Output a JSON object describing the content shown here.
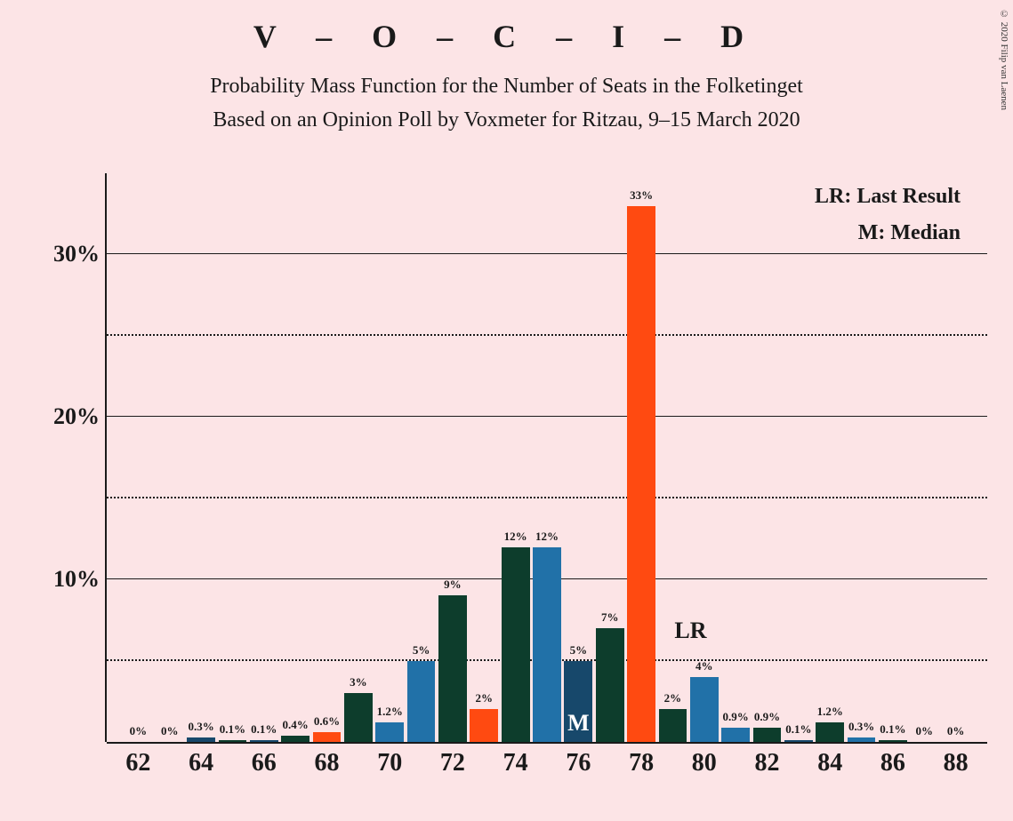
{
  "title": "V – O – C – I – D",
  "subtitle_line1": "Probability Mass Function for the Number of Seats in the Folketinget",
  "subtitle_line2": "Based on an Opinion Poll by Voxmeter for Ritzau, 9–15 March 2020",
  "copyright": "© 2020 Filip van Laenen",
  "legend_lr": "LR: Last Result",
  "legend_m": "M: Median",
  "marker_m": "M",
  "marker_lr": "LR",
  "chart": {
    "type": "bar",
    "background_color": "#fce4e6",
    "text_color": "#1a1a1a",
    "grid_solid_color": "#1a1a1a",
    "grid_dotted_color": "#1a1a1a",
    "ylim_max": 35,
    "y_ticks_major": [
      10,
      20,
      30
    ],
    "y_ticks_minor": [
      5,
      15,
      25
    ],
    "y_tick_labels": [
      "10%",
      "20%",
      "30%"
    ],
    "x_ticks": [
      62,
      64,
      66,
      68,
      70,
      72,
      74,
      76,
      78,
      80,
      82,
      84,
      86,
      88
    ],
    "x_min": 61,
    "x_max": 89,
    "bar_width": 0.9,
    "median_x": 76,
    "lr_x": 79,
    "bars": [
      {
        "x": 62,
        "value": 0,
        "label": "0%",
        "color": "#17486b"
      },
      {
        "x": 63,
        "value": 0,
        "label": "0%",
        "color": "#0d3d2c"
      },
      {
        "x": 64,
        "value": 0.3,
        "label": "0.3%",
        "color": "#17486b"
      },
      {
        "x": 65,
        "value": 0.1,
        "label": "0.1%",
        "color": "#0d3d2c"
      },
      {
        "x": 66,
        "value": 0.1,
        "label": "0.1%",
        "color": "#17486b"
      },
      {
        "x": 67,
        "value": 0.4,
        "label": "0.4%",
        "color": "#0d3d2c"
      },
      {
        "x": 68,
        "value": 0.6,
        "label": "0.6%",
        "color": "#ff4a11"
      },
      {
        "x": 69,
        "value": 3,
        "label": "3%",
        "color": "#0d3d2c"
      },
      {
        "x": 70,
        "value": 1.2,
        "label": "1.2%",
        "color": "#2171a8"
      },
      {
        "x": 71,
        "value": 5,
        "label": "5%",
        "color": "#2171a8"
      },
      {
        "x": 72,
        "value": 9,
        "label": "9%",
        "color": "#0d3d2c"
      },
      {
        "x": 73,
        "value": 2,
        "label": "2%",
        "color": "#ff4a11"
      },
      {
        "x": 74,
        "value": 12,
        "label": "12%",
        "color": "#0d3d2c"
      },
      {
        "x": 75,
        "value": 12,
        "label": "12%",
        "color": "#2171a8"
      },
      {
        "x": 76,
        "value": 5,
        "label": "5%",
        "color": "#17486b"
      },
      {
        "x": 77,
        "value": 7,
        "label": "7%",
        "color": "#0d3d2c"
      },
      {
        "x": 78,
        "value": 33,
        "label": "33%",
        "color": "#ff4a11"
      },
      {
        "x": 79,
        "value": 2,
        "label": "2%",
        "color": "#0d3d2c"
      },
      {
        "x": 80,
        "value": 4,
        "label": "4%",
        "color": "#2171a8"
      },
      {
        "x": 81,
        "value": 0.9,
        "label": "0.9%",
        "color": "#2171a8"
      },
      {
        "x": 82,
        "value": 0.9,
        "label": "0.9%",
        "color": "#0d3d2c"
      },
      {
        "x": 83,
        "value": 0.1,
        "label": "0.1%",
        "color": "#17486b"
      },
      {
        "x": 84,
        "value": 1.2,
        "label": "1.2%",
        "color": "#0d3d2c"
      },
      {
        "x": 85,
        "value": 0.3,
        "label": "0.3%",
        "color": "#2171a8"
      },
      {
        "x": 86,
        "value": 0.1,
        "label": "0.1%",
        "color": "#0d3d2c"
      },
      {
        "x": 87,
        "value": 0,
        "label": "0%",
        "color": "#17486b"
      },
      {
        "x": 88,
        "value": 0,
        "label": "0%",
        "color": "#0d3d2c"
      }
    ]
  }
}
